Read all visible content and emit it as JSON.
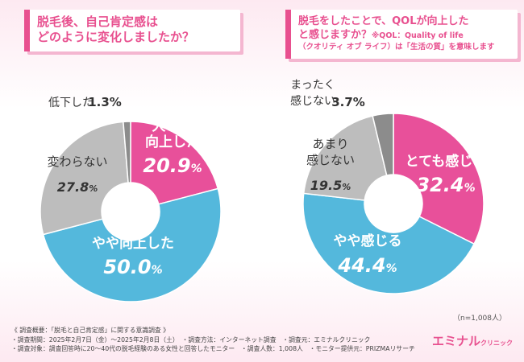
{
  "q1": {
    "line1": "脱毛後、自己肯定感は",
    "line2": "どのように変化しましたか？"
  },
  "q2": {
    "line1": "脱毛をしたことで、QOLが向上した",
    "line2": "と感じますか？",
    "note_inline": "※QOL：Quality of life",
    "note2": "（クオリティ オブ ライフ）は「生活の質」を意味します"
  },
  "chart_data": [
    {
      "type": "pie",
      "title": "脱毛後、自己肯定感はどのように変化しましたか？",
      "slices": [
        {
          "label": "大きく向上した",
          "value": 20.9,
          "display": "20.9%",
          "color": "#e8509a"
        },
        {
          "label": "やや向上した",
          "value": 50.0,
          "display": "50.0%",
          "color": "#54b8dc"
        },
        {
          "label": "変わらない",
          "value": 27.8,
          "display": "27.8%",
          "color": "#bdbdbd"
        },
        {
          "label": "低下した",
          "value": 1.3,
          "display": "1.3%",
          "color": "#8c8c8c"
        }
      ]
    },
    {
      "type": "pie",
      "title": "脱毛をしたことで、QOLが向上したと感じますか？",
      "slices": [
        {
          "label": "とても感じる",
          "value": 32.4,
          "display": "32.4%",
          "color": "#e8509a"
        },
        {
          "label": "やや感じる",
          "value": 44.4,
          "display": "44.4%",
          "color": "#54b8dc"
        },
        {
          "label": "あまり感じない",
          "value": 19.5,
          "display": "19.5%",
          "color": "#bdbdbd"
        },
        {
          "label": "まったく感じない",
          "value": 3.7,
          "display": "3.7%",
          "color": "#8c8c8c"
        }
      ]
    }
  ],
  "n_label": "（n=1,008人）",
  "footer": {
    "line1": "《 調査概要：「脱毛と自己肯定感」に関する意識調査 》",
    "line2": "・調査期間：2025年2月7日（金）〜2025年2月8日（土）　・調査方法：インターネット調査　・調査元：エミナルクリニック",
    "line3": "・調査対象：調査回答時に20〜40代の脱毛経験のある女性と回答したモニター　・調査人数：1,008人　・モニター提供元：PRIZMAリサーチ"
  },
  "logo": {
    "main": "エミナル",
    "sub": "クリニック"
  }
}
